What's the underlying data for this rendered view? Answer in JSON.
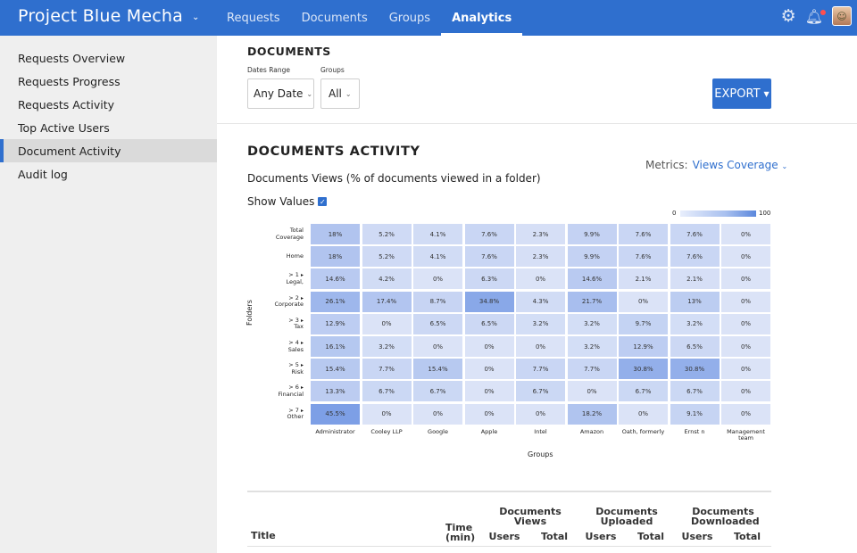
{
  "header": {
    "project": "Project Blue Mecha",
    "tabs": [
      {
        "label": "Requests",
        "active": false
      },
      {
        "label": "Documents",
        "active": false
      },
      {
        "label": "Groups",
        "active": false
      },
      {
        "label": "Analytics",
        "active": true
      }
    ]
  },
  "sidebar": {
    "items": [
      {
        "label": "Requests Overview",
        "active": false
      },
      {
        "label": "Requests Progress",
        "active": false
      },
      {
        "label": "Requests Activity",
        "active": false
      },
      {
        "label": "Top Active Users",
        "active": false
      },
      {
        "label": "Document Activity",
        "active": true
      },
      {
        "label": "Audit log",
        "active": false
      }
    ]
  },
  "filters": {
    "section_title": "DOCUMENTS",
    "dates_label": "Dates Range",
    "dates_value": "Any Date",
    "groups_label": "Groups",
    "groups_value": "All",
    "export_label": "EXPORT"
  },
  "activity": {
    "title": "DOCUMENTS ACTIVITY",
    "subtitle": "Documents Views (% of documents viewed in a folder)",
    "metrics_label": "Metrics:",
    "metrics_value": "Views Coverage",
    "show_values_label": "Show Values"
  },
  "chart_data": {
    "type": "heatmap",
    "title": "Documents Views (% of documents viewed in a folder)",
    "xlabel": "Groups",
    "ylabel": "Folders",
    "legend_min": "0",
    "legend_max": "100",
    "rows": [
      "Total Coverage",
      "Home",
      "> 1 Legal,",
      "> 2 Corporate",
      "> 3 Tax",
      "> 4 Sales",
      "> 5 Risk",
      "> 6 Financial",
      "> 7 Other"
    ],
    "columns": [
      "Administrator",
      "Cooley LLP",
      "Google",
      "Apple",
      "Intel",
      "Amazon",
      "Oath, formerly",
      "Ernst n",
      "Management team"
    ],
    "values": [
      [
        18,
        5.2,
        4.1,
        7.6,
        2.3,
        9.9,
        7.6,
        7.6,
        0
      ],
      [
        18,
        5.2,
        4.1,
        7.6,
        2.3,
        9.9,
        7.6,
        7.6,
        0
      ],
      [
        14.6,
        4.2,
        0,
        6.3,
        0,
        14.6,
        2.1,
        2.1,
        0
      ],
      [
        26.1,
        17.4,
        8.7,
        34.8,
        4.3,
        21.7,
        0,
        13,
        0
      ],
      [
        12.9,
        0,
        6.5,
        6.5,
        3.2,
        3.2,
        9.7,
        3.2,
        0
      ],
      [
        16.1,
        3.2,
        0,
        0,
        0,
        3.2,
        12.9,
        6.5,
        0
      ],
      [
        15.4,
        7.7,
        15.4,
        0,
        7.7,
        7.7,
        30.8,
        30.8,
        0
      ],
      [
        13.3,
        6.7,
        6.7,
        0,
        6.7,
        0,
        6.7,
        6.7,
        0
      ],
      [
        45.5,
        0,
        0,
        0,
        0,
        18.2,
        0,
        9.1,
        0
      ]
    ]
  },
  "table": {
    "title_col": "Title",
    "time_col": "Time (min)",
    "groups": [
      {
        "label": "Documents Views",
        "users": "Users",
        "total": "Total"
      },
      {
        "label": "Documents Uploaded",
        "users": "Users",
        "total": "Total"
      },
      {
        "label": "Documents Downloaded",
        "users": "Users",
        "total": "Total"
      }
    ]
  },
  "colors": {
    "brand": "#2f6fce",
    "cell_low": "#d9e3f7",
    "cell_high": "#7d9fe6"
  }
}
